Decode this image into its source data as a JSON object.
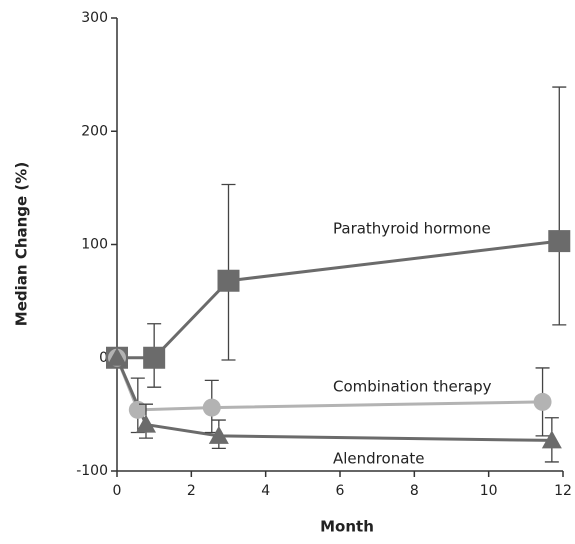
{
  "chart_data": {
    "type": "line",
    "xlabel": "Month",
    "ylabel": "Median Change (%)",
    "xlim": [
      0,
      12
    ],
    "xticks": [
      0,
      2,
      4,
      6,
      8,
      10,
      12
    ],
    "ylim": [
      -100,
      300
    ],
    "yticks": [
      -100,
      0,
      100,
      200,
      300
    ],
    "series": [
      {
        "name": "Parathyroid hormone",
        "color": "#6b6b6b",
        "marker": "square",
        "x": [
          0,
          1,
          3,
          11.9
        ],
        "values": [
          0,
          0,
          68,
          103
        ],
        "error_plus": [
          null,
          30,
          85,
          136
        ],
        "error_minus": [
          null,
          26,
          70,
          74
        ]
      },
      {
        "name": "Combination therapy",
        "color": "#b3b3b3",
        "marker": "circle",
        "x": [
          0,
          0.56,
          2.55,
          11.45
        ],
        "values": [
          0,
          -46,
          -44,
          -39
        ],
        "error_plus": [
          null,
          28,
          24,
          30
        ],
        "error_minus": [
          null,
          20,
          22,
          30
        ]
      },
      {
        "name": "Alendronate",
        "color": "#6b6b6b",
        "marker": "triangle",
        "x": [
          0,
          0.78,
          2.74,
          11.7
        ],
        "values": [
          0,
          -59,
          -69,
          -73
        ],
        "error_plus": [
          null,
          18,
          14,
          20
        ],
        "error_minus": [
          null,
          12,
          11,
          19
        ]
      }
    ]
  }
}
